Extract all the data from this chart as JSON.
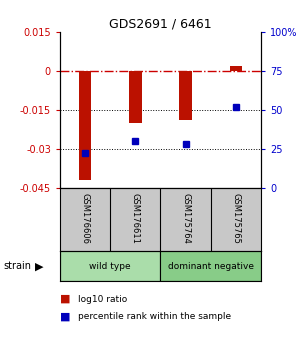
{
  "title": "GDS2691 / 6461",
  "samples": [
    "GSM176606",
    "GSM176611",
    "GSM175764",
    "GSM175765"
  ],
  "log10_ratio": [
    -0.042,
    -0.02,
    -0.019,
    0.002
  ],
  "percentile_rank": [
    22,
    30,
    28,
    52
  ],
  "strain_groups": [
    {
      "label": "wild type",
      "samples": [
        0,
        1
      ],
      "color": "#aaddaa"
    },
    {
      "label": "dominant negative",
      "samples": [
        2,
        3
      ],
      "color": "#88cc88"
    }
  ],
  "ylim_left": [
    -0.045,
    0.015
  ],
  "ylim_right": [
    0,
    100
  ],
  "yticks_left": [
    0.015,
    0,
    -0.015,
    -0.03,
    -0.045
  ],
  "yticks_right": [
    100,
    75,
    50,
    25,
    0
  ],
  "left_color": "#cc0000",
  "right_color": "#0000cc",
  "bar_color_red": "#bb1100",
  "bar_color_blue": "#0000bb",
  "hline_zero_color": "#cc0000",
  "hline_dotted_color": "#000000",
  "legend_red_label": "log10 ratio",
  "legend_blue_label": "percentile rank within the sample",
  "strain_label": "strain"
}
